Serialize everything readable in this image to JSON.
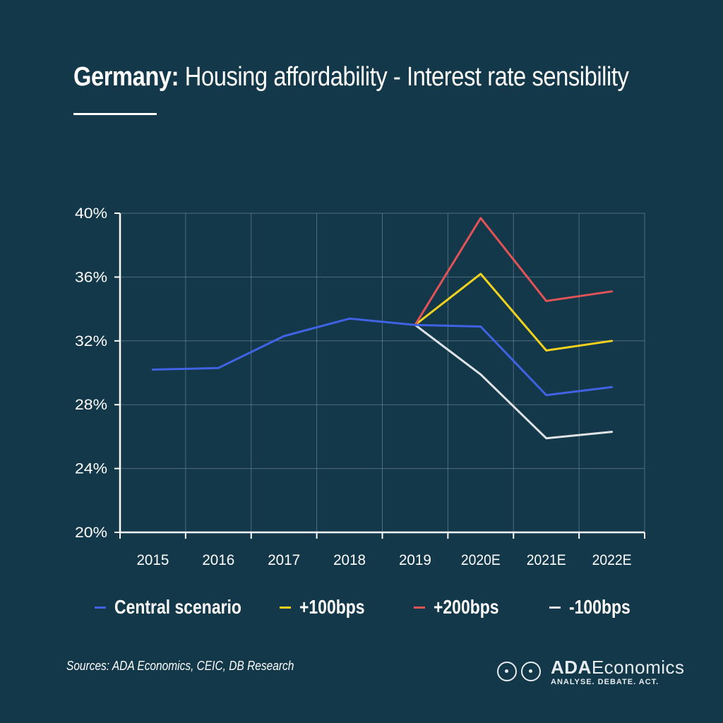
{
  "header": {
    "title_bold": "Germany:",
    "title_rest": " Housing affordability - Interest rate sensibility"
  },
  "chart_data": {
    "type": "line",
    "categories": [
      "2015",
      "2016",
      "2017",
      "2018",
      "2019",
      "2020E",
      "2021E",
      "2022E"
    ],
    "yticks": [
      "20%",
      "24%",
      "28%",
      "32%",
      "36%",
      "40%"
    ],
    "ylim": [
      20,
      40
    ],
    "grid": true,
    "legend_position": "bottom",
    "series": [
      {
        "name": "Central scenario",
        "color": "#3f63e3",
        "values": [
          30.2,
          30.3,
          32.3,
          33.4,
          33.0,
          32.9,
          28.6,
          29.1
        ]
      },
      {
        "name": "+100bps",
        "color": "#f2d21f",
        "values": [
          null,
          null,
          null,
          null,
          33.0,
          36.2,
          31.4,
          32.0
        ]
      },
      {
        "name": "+200bps",
        "color": "#e25357",
        "values": [
          null,
          null,
          null,
          null,
          33.0,
          39.7,
          34.5,
          35.1
        ]
      },
      {
        "name": "-100bps",
        "color": "#dfe3e6",
        "values": [
          null,
          null,
          null,
          null,
          33.0,
          29.9,
          25.9,
          26.3
        ]
      }
    ]
  },
  "footer": {
    "source": "Sources: ADA Economics, CEIC, DB Research",
    "logo_name_bold": "ADA",
    "logo_name_rest": "Economics",
    "logo_tagline": "ANALYSE. DEBATE. ACT."
  }
}
